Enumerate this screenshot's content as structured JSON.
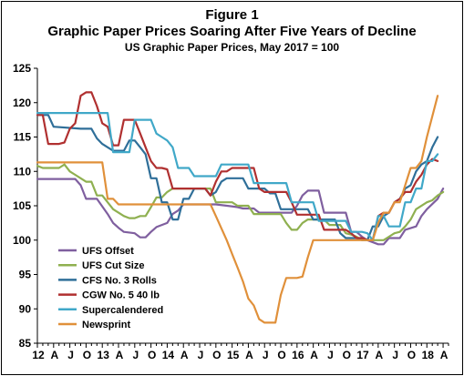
{
  "header": {
    "figure_label": "Figure 1",
    "title": "Graphic Paper Prices Soaring After Five Years of Decline",
    "subtitle": "US Graphic  Paper Prices, May 2017 = 100"
  },
  "chart_data": {
    "type": "line",
    "title": "Graphic Paper Prices Soaring After Five Years of Decline",
    "subtitle": "US Graphic  Paper Prices, May 2017 = 100",
    "x_unit": "months since Jan 2012",
    "x_tick_labels": [
      "12",
      "A",
      "J",
      "O",
      "13",
      "A",
      "J",
      "O",
      "14",
      "A",
      "J",
      "O",
      "15",
      "A",
      "J",
      "O",
      "16",
      "A",
      "J",
      "O",
      "17",
      "A",
      "J",
      "O",
      "18",
      "A"
    ],
    "ylim": [
      85,
      125
    ],
    "y_ticks": [
      85,
      90,
      95,
      100,
      105,
      110,
      115,
      120,
      125
    ],
    "legend_position": "bottom-left",
    "grid": false,
    "series": [
      {
        "name": "UFS Offset",
        "color": "#7f5f9f",
        "points": [
          [
            0,
            108.9
          ],
          [
            4,
            108.9
          ],
          [
            7,
            108.9
          ],
          [
            8,
            108.0
          ],
          [
            9,
            106.0
          ],
          [
            11,
            106.0
          ],
          [
            13,
            103.8
          ],
          [
            14,
            102.5
          ],
          [
            15,
            101.8
          ],
          [
            16,
            101.2
          ],
          [
            18,
            101.0
          ],
          [
            19,
            100.4
          ],
          [
            20,
            100.4
          ],
          [
            21,
            101.2
          ],
          [
            22,
            101.9
          ],
          [
            24,
            102.5
          ],
          [
            25,
            103.8
          ],
          [
            26,
            104.3
          ],
          [
            27,
            105.2
          ],
          [
            31,
            105.2
          ],
          [
            33,
            105.2
          ],
          [
            37,
            104.8
          ],
          [
            38,
            104.6
          ],
          [
            40,
            104.6
          ],
          [
            41,
            104.0
          ],
          [
            46,
            104.0
          ],
          [
            47,
            104.0
          ],
          [
            48,
            105.0
          ],
          [
            49,
            106.5
          ],
          [
            50,
            107.2
          ],
          [
            52,
            107.2
          ],
          [
            53,
            104.0
          ],
          [
            57,
            104.0
          ],
          [
            58,
            101.2
          ],
          [
            59,
            101.2
          ],
          [
            60,
            100.5
          ],
          [
            61,
            100.0
          ],
          [
            63,
            99.4
          ],
          [
            64,
            99.4
          ],
          [
            65,
            100.3
          ],
          [
            67,
            100.3
          ],
          [
            68,
            101.5
          ],
          [
            70,
            102.0
          ],
          [
            71,
            103.5
          ],
          [
            72,
            104.5
          ],
          [
            74,
            106.0
          ],
          [
            75,
            107.5
          ]
        ]
      },
      {
        "name": "UFS Cut Size",
        "color": "#8fb050",
        "points": [
          [
            0,
            110.8
          ],
          [
            1,
            110.5
          ],
          [
            3,
            110.5
          ],
          [
            4,
            110.5
          ],
          [
            5,
            111.0
          ],
          [
            6,
            110.0
          ],
          [
            7,
            109.5
          ],
          [
            8,
            109.0
          ],
          [
            9,
            108.5
          ],
          [
            10,
            108.5
          ],
          [
            11,
            106.5
          ],
          [
            12,
            106.5
          ],
          [
            13,
            105.5
          ],
          [
            14,
            104.5
          ],
          [
            15,
            104.0
          ],
          [
            16,
            103.5
          ],
          [
            17,
            103.2
          ],
          [
            18,
            103.2
          ],
          [
            19,
            103.5
          ],
          [
            20,
            103.5
          ],
          [
            21,
            104.8
          ],
          [
            22,
            106.2
          ],
          [
            23,
            106.2
          ],
          [
            24,
            107.0
          ],
          [
            25,
            107.5
          ],
          [
            30,
            107.5
          ],
          [
            32,
            107.5
          ],
          [
            33,
            105.5
          ],
          [
            36,
            105.5
          ],
          [
            37,
            105.0
          ],
          [
            38,
            105.0
          ],
          [
            39,
            105.0
          ],
          [
            40,
            103.8
          ],
          [
            45,
            103.8
          ],
          [
            46,
            102.5
          ],
          [
            47,
            101.5
          ],
          [
            48,
            101.5
          ],
          [
            49,
            102.5
          ],
          [
            50,
            103.0
          ],
          [
            53,
            103.0
          ],
          [
            54,
            102.2
          ],
          [
            56,
            102.2
          ],
          [
            57,
            101.0
          ],
          [
            58,
            100.8
          ],
          [
            59,
            100.5
          ],
          [
            60,
            100.0
          ],
          [
            64,
            100.0
          ],
          [
            65,
            100.5
          ],
          [
            66,
            101.0
          ],
          [
            67,
            101.2
          ],
          [
            68,
            102.0
          ],
          [
            69,
            103.0
          ],
          [
            70,
            104.5
          ],
          [
            72,
            105.5
          ],
          [
            73,
            105.8
          ],
          [
            74,
            106.5
          ],
          [
            75,
            107.0
          ]
        ]
      },
      {
        "name": "CFS No. 3 Rolls",
        "color": "#2f6f99",
        "points": [
          [
            0,
            118.2
          ],
          [
            2,
            118.2
          ],
          [
            3,
            116.5
          ],
          [
            8,
            116.2
          ],
          [
            10,
            116.2
          ],
          [
            11,
            114.8
          ],
          [
            12,
            114.0
          ],
          [
            13,
            113.5
          ],
          [
            14,
            113.0
          ],
          [
            15,
            113.0
          ],
          [
            16,
            113.0
          ],
          [
            17,
            114.5
          ],
          [
            18,
            114.5
          ],
          [
            19,
            113.5
          ],
          [
            20,
            112.5
          ],
          [
            21,
            109.0
          ],
          [
            22,
            109.0
          ],
          [
            23,
            105.5
          ],
          [
            24,
            105.5
          ],
          [
            25,
            103.0
          ],
          [
            26,
            103.0
          ],
          [
            27,
            106.0
          ],
          [
            28,
            106.0
          ],
          [
            29,
            107.5
          ],
          [
            31,
            107.5
          ],
          [
            32,
            106.5
          ],
          [
            33,
            107.0
          ],
          [
            34,
            108.5
          ],
          [
            35,
            109.0
          ],
          [
            38,
            109.0
          ],
          [
            39,
            107.5
          ],
          [
            42,
            107.5
          ],
          [
            43,
            106.8
          ],
          [
            44,
            106.8
          ],
          [
            45,
            104.5
          ],
          [
            49,
            104.5
          ],
          [
            50,
            104.5
          ],
          [
            51,
            103.0
          ],
          [
            54,
            103.0
          ],
          [
            55,
            103.0
          ],
          [
            56,
            101.0
          ],
          [
            57,
            100.3
          ],
          [
            58,
            100.3
          ],
          [
            59,
            100.3
          ],
          [
            60,
            100.0
          ],
          [
            61,
            100.0
          ],
          [
            62,
            102.0
          ],
          [
            63,
            102.0
          ],
          [
            64,
            103.5
          ],
          [
            65,
            104.0
          ],
          [
            66,
            105.5
          ],
          [
            67,
            106.0
          ],
          [
            68,
            107.5
          ],
          [
            69,
            108.0
          ],
          [
            70,
            110.0
          ],
          [
            71,
            111.0
          ],
          [
            72,
            111.5
          ],
          [
            73,
            113.5
          ],
          [
            74,
            115.0
          ]
        ]
      },
      {
        "name": "CGW No. 5 40 lb",
        "color": "#b03030",
        "points": [
          [
            0,
            118.2
          ],
          [
            1,
            118.2
          ],
          [
            2,
            114.0
          ],
          [
            4,
            114.0
          ],
          [
            5,
            114.2
          ],
          [
            6,
            116.2
          ],
          [
            7,
            117.0
          ],
          [
            8,
            121.0
          ],
          [
            9,
            121.5
          ],
          [
            10,
            121.5
          ],
          [
            11,
            119.5
          ],
          [
            12,
            117.0
          ],
          [
            13,
            116.5
          ],
          [
            14,
            113.8
          ],
          [
            15,
            113.8
          ],
          [
            16,
            117.5
          ],
          [
            17,
            117.5
          ],
          [
            18,
            117.5
          ],
          [
            19,
            115.5
          ],
          [
            20,
            113.5
          ],
          [
            21,
            111.5
          ],
          [
            22,
            110.5
          ],
          [
            23,
            110.5
          ],
          [
            24,
            110.3
          ],
          [
            25,
            107.5
          ],
          [
            26,
            107.5
          ],
          [
            27,
            107.5
          ],
          [
            28,
            107.5
          ],
          [
            29,
            107.5
          ],
          [
            31,
            107.5
          ],
          [
            32,
            106.5
          ],
          [
            33,
            108.5
          ],
          [
            34,
            110.0
          ],
          [
            35,
            110.0
          ],
          [
            36,
            110.5
          ],
          [
            39,
            110.5
          ],
          [
            40,
            110.5
          ],
          [
            41,
            107.5
          ],
          [
            42,
            107.0
          ],
          [
            43,
            107.0
          ],
          [
            46,
            107.0
          ],
          [
            47,
            105.5
          ],
          [
            48,
            103.7
          ],
          [
            52,
            103.7
          ],
          [
            53,
            101.5
          ],
          [
            57,
            101.5
          ],
          [
            58,
            101.0
          ],
          [
            59,
            100.3
          ],
          [
            60,
            100.3
          ],
          [
            61,
            100.0
          ],
          [
            62,
            100.0
          ],
          [
            63,
            103.5
          ],
          [
            64,
            104.0
          ],
          [
            65,
            104.0
          ],
          [
            66,
            105.5
          ],
          [
            67,
            106.0
          ],
          [
            68,
            107.0
          ],
          [
            69,
            107.0
          ],
          [
            70,
            108.5
          ],
          [
            71,
            109.5
          ],
          [
            72,
            111.0
          ],
          [
            73,
            111.8
          ],
          [
            74,
            111.5
          ]
        ]
      },
      {
        "name": "Supercalendered",
        "color": "#40a8c8",
        "points": [
          [
            0,
            118.5
          ],
          [
            13,
            118.5
          ],
          [
            14,
            112.8
          ],
          [
            17,
            112.8
          ],
          [
            18,
            117.5
          ],
          [
            19,
            117.5
          ],
          [
            20,
            117.5
          ],
          [
            21,
            117.5
          ],
          [
            22,
            115.5
          ],
          [
            23,
            115.0
          ],
          [
            24,
            114.5
          ],
          [
            25,
            113.5
          ],
          [
            26,
            110.5
          ],
          [
            28,
            110.5
          ],
          [
            29,
            109.3
          ],
          [
            33,
            109.3
          ],
          [
            34,
            111.0
          ],
          [
            38,
            111.0
          ],
          [
            39,
            111.0
          ],
          [
            40,
            108.3
          ],
          [
            46,
            108.3
          ],
          [
            47,
            105.5
          ],
          [
            51,
            105.5
          ],
          [
            52,
            102.8
          ],
          [
            57,
            102.8
          ],
          [
            58,
            101.2
          ],
          [
            60,
            101.2
          ],
          [
            61,
            101.0
          ],
          [
            62,
            100.0
          ],
          [
            63,
            103.5
          ],
          [
            64,
            103.5
          ],
          [
            65,
            102.0
          ],
          [
            67,
            102.0
          ],
          [
            68,
            105.5
          ],
          [
            69,
            105.5
          ],
          [
            70,
            107.5
          ],
          [
            71,
            107.5
          ],
          [
            72,
            111.5
          ],
          [
            73,
            111.5
          ],
          [
            74,
            112.5
          ]
        ]
      },
      {
        "name": "Newsprint",
        "color": "#e0903a",
        "points": [
          [
            0,
            111.3
          ],
          [
            12,
            111.3
          ],
          [
            13,
            106.0
          ],
          [
            14,
            106.0
          ],
          [
            15,
            105.2
          ],
          [
            16,
            105.2
          ],
          [
            31,
            105.2
          ],
          [
            32,
            105.2
          ],
          [
            33,
            103.5
          ],
          [
            35,
            100.0
          ],
          [
            36,
            98.0
          ],
          [
            37,
            96.0
          ],
          [
            38,
            94.0
          ],
          [
            39,
            91.5
          ],
          [
            40,
            90.5
          ],
          [
            41,
            88.5
          ],
          [
            42,
            88.0
          ],
          [
            43,
            88.0
          ],
          [
            44,
            88.0
          ],
          [
            45,
            92.0
          ],
          [
            46,
            94.5
          ],
          [
            48,
            94.5
          ],
          [
            49,
            94.7
          ],
          [
            50,
            97.5
          ],
          [
            51,
            100.0
          ],
          [
            60,
            100.0
          ],
          [
            62,
            100.0
          ],
          [
            63,
            102.5
          ],
          [
            64,
            104.0
          ],
          [
            65,
            104.0
          ],
          [
            66,
            105.5
          ],
          [
            67,
            105.5
          ],
          [
            68,
            108.0
          ],
          [
            69,
            110.5
          ],
          [
            70,
            110.5
          ],
          [
            71,
            111.5
          ],
          [
            72,
            115.0
          ],
          [
            73,
            118.0
          ],
          [
            74,
            121.0
          ]
        ]
      }
    ]
  }
}
